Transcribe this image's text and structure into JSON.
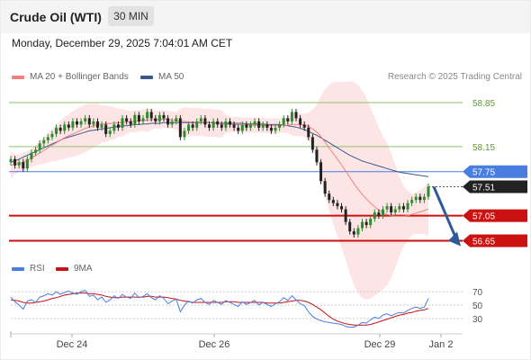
{
  "header": {
    "title": "Crude Oil (WTI)",
    "timeframe": "30 MIN",
    "timestamp": "Monday, December 29, 2025 7:04:01 AM CET"
  },
  "legend": {
    "ma20_label": "MA 20 + Bollinger Bands",
    "ma50_label": "MA 50",
    "credit": "Research © 2025 Trading Central",
    "rsi_label": "RSI",
    "rsi_ma_label": "9MA"
  },
  "colors": {
    "ma20": "#f08080",
    "ma50": "#3a5a8c",
    "band_fill": "#fde0e0",
    "candle_up": "#2e8b2e",
    "candle_down": "#222222",
    "resistance_line": "#8dc36b",
    "pivot_line": "#4a7de0",
    "support_line": "#cc1111",
    "current_price_tag": "#222222",
    "arrow": "#2d5b96",
    "rsi": "#4a7de0",
    "rsi_ma": "#cc1111"
  },
  "chart_data": {
    "type": "candlestick",
    "x_ticks": [
      "Dec 24",
      "Dec 26",
      "Dec 29",
      "Jan 2"
    ],
    "y_range": [
      56.5,
      59.05
    ],
    "levels": [
      {
        "value": 58.85,
        "label": "58.85",
        "kind": "resistance"
      },
      {
        "value": 58.15,
        "label": "58.15",
        "kind": "resistance"
      },
      {
        "value": 57.75,
        "label": "57.75",
        "kind": "pivot"
      },
      {
        "value": 57.51,
        "label": "57.51",
        "kind": "last"
      },
      {
        "value": 57.05,
        "label": "57.05",
        "kind": "support"
      },
      {
        "value": 56.65,
        "label": "56.65",
        "kind": "support"
      }
    ],
    "close": [
      57.95,
      57.85,
      57.9,
      57.8,
      57.95,
      58.05,
      58.1,
      58.2,
      58.25,
      58.3,
      58.35,
      58.45,
      58.4,
      58.5,
      58.45,
      58.55,
      58.5,
      58.55,
      58.6,
      58.5,
      58.55,
      58.45,
      58.5,
      58.35,
      58.4,
      58.5,
      58.45,
      58.6,
      58.55,
      58.5,
      58.65,
      58.55,
      58.6,
      58.7,
      58.6,
      58.55,
      58.65,
      58.6,
      58.5,
      58.55,
      58.6,
      58.3,
      58.4,
      58.5,
      58.45,
      58.55,
      58.6,
      58.5,
      58.45,
      58.55,
      58.5,
      58.45,
      58.55,
      58.5,
      58.45,
      58.4,
      58.5,
      58.45,
      58.5,
      58.55,
      58.45,
      58.5,
      58.45,
      58.4,
      58.45,
      58.5,
      58.6,
      58.55,
      58.7,
      58.6,
      58.5,
      58.45,
      58.3,
      58.1,
      57.9,
      57.6,
      57.4,
      57.3,
      57.25,
      57.2,
      57.15,
      56.95,
      56.8,
      56.75,
      56.85,
      56.95,
      56.9,
      57.0,
      57.1,
      57.05,
      57.15,
      57.2,
      57.1,
      57.15,
      57.2,
      57.15,
      57.25,
      57.3,
      57.35,
      57.3,
      57.35,
      57.51
    ],
    "ma20": [
      57.85,
      57.87,
      57.88,
      57.9,
      57.93,
      57.97,
      58.01,
      58.05,
      58.09,
      58.13,
      58.17,
      58.21,
      58.25,
      58.29,
      58.32,
      58.35,
      58.38,
      58.41,
      58.44,
      58.46,
      58.48,
      58.5,
      58.51,
      58.51,
      58.52,
      58.52,
      58.53,
      58.53,
      58.54,
      58.55,
      58.55,
      58.56,
      58.57,
      58.57,
      58.58,
      58.58,
      58.58,
      58.59,
      58.58,
      58.57,
      58.56,
      58.55,
      58.55,
      58.54,
      58.54,
      58.54,
      58.54,
      58.53,
      58.53,
      58.52,
      58.52,
      58.51,
      58.51,
      58.5,
      58.5,
      58.5,
      58.49,
      58.49,
      58.49,
      58.49,
      58.49,
      58.49,
      58.48,
      58.48,
      58.48,
      58.48,
      58.49,
      58.49,
      58.5,
      58.5,
      58.5,
      58.49,
      58.47,
      58.43,
      58.38,
      58.31,
      58.22,
      58.13,
      58.04,
      57.95,
      57.86,
      57.76,
      57.66,
      57.56,
      57.47,
      57.39,
      57.32,
      57.25,
      57.19,
      57.14,
      57.1,
      57.07,
      57.05,
      57.04,
      57.04,
      57.04,
      57.05,
      57.07,
      57.09,
      57.11,
      57.13,
      57.16
    ],
    "ma50": [
      57.9,
      57.92,
      57.95,
      57.98,
      58.01,
      58.04,
      58.07,
      58.1,
      58.13,
      58.16,
      58.19,
      58.22,
      58.25,
      58.28,
      58.3,
      58.32,
      58.34,
      58.36,
      58.38,
      58.4,
      58.41,
      58.42,
      58.43,
      58.44,
      58.45,
      58.46,
      58.47,
      58.48,
      58.48,
      58.49,
      58.5,
      58.5,
      58.51,
      58.51,
      58.52,
      58.52,
      58.52,
      58.53,
      58.53,
      58.53,
      58.53,
      58.53,
      58.53,
      58.53,
      58.53,
      58.53,
      58.53,
      58.53,
      58.53,
      58.53,
      58.52,
      58.52,
      58.52,
      58.52,
      58.52,
      58.52,
      58.52,
      58.51,
      58.51,
      58.51,
      58.51,
      58.51,
      58.5,
      58.5,
      58.5,
      58.5,
      58.49,
      58.48,
      58.47,
      58.46,
      58.44,
      58.42,
      58.39,
      58.36,
      58.33,
      58.29,
      58.25,
      58.21,
      58.17,
      58.13,
      58.09,
      58.05,
      58.01,
      57.98,
      57.95,
      57.92,
      57.9,
      57.88,
      57.86,
      57.84,
      57.82,
      57.8,
      57.78,
      57.76,
      57.74,
      57.73,
      57.72,
      57.71,
      57.7,
      57.69,
      57.68,
      57.67
    ],
    "rsi": {
      "levels": [
        70,
        50,
        30
      ],
      "range": [
        15,
        85
      ],
      "values": [
        62,
        55,
        50,
        44,
        56,
        58,
        54,
        62,
        64,
        67,
        65,
        70,
        66,
        69,
        71,
        68,
        66,
        70,
        72,
        63,
        65,
        58,
        62,
        54,
        58,
        64,
        60,
        66,
        62,
        60,
        68,
        61,
        63,
        67,
        61,
        58,
        64,
        60,
        52,
        56,
        59,
        40,
        50,
        56,
        53,
        58,
        60,
        54,
        51,
        57,
        54,
        51,
        57,
        54,
        51,
        48,
        55,
        51,
        54,
        57,
        50,
        54,
        51,
        48,
        52,
        55,
        61,
        57,
        64,
        58,
        52,
        49,
        40,
        33,
        29,
        27,
        25,
        24,
        23,
        22,
        21,
        18,
        17,
        17,
        20,
        24,
        23,
        28,
        32,
        30,
        35,
        37,
        34,
        37,
        39,
        38,
        42,
        45,
        47,
        45,
        47,
        60
      ],
      "ma9": [
        58,
        57,
        56,
        54,
        53,
        53,
        54,
        55,
        56,
        58,
        60,
        61,
        63,
        65,
        66,
        67,
        68,
        68,
        68,
        67,
        67,
        66,
        65,
        63,
        62,
        61,
        61,
        62,
        62,
        62,
        62,
        62,
        62,
        63,
        63,
        62,
        62,
        62,
        61,
        60,
        59,
        57,
        56,
        55,
        54,
        54,
        54,
        54,
        54,
        54,
        54,
        54,
        55,
        55,
        55,
        54,
        54,
        54,
        54,
        54,
        54,
        54,
        53,
        53,
        53,
        53,
        54,
        55,
        56,
        57,
        57,
        56,
        54,
        51,
        47,
        43,
        38,
        33,
        29,
        26,
        24,
        22,
        21,
        20,
        20,
        20,
        20,
        21,
        23,
        25,
        27,
        29,
        31,
        33,
        35,
        36,
        38,
        39,
        41,
        42,
        43,
        45
      ]
    }
  }
}
